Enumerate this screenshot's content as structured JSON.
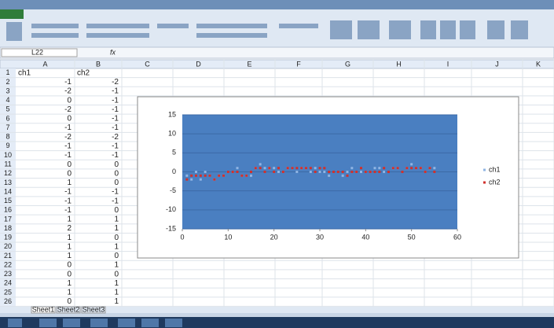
{
  "sheet": {
    "name_box": "L22",
    "formula_label": "fx",
    "columns": [
      "A",
      "B",
      "C",
      "D",
      "E",
      "F",
      "G",
      "H",
      "I",
      "J",
      "K"
    ],
    "rows": [
      1,
      2,
      3,
      4,
      5,
      6,
      7,
      8,
      9,
      10,
      11,
      12,
      13,
      14,
      15,
      16,
      17,
      18,
      19,
      20,
      21,
      22,
      23,
      24,
      25,
      26
    ],
    "cells": [
      [
        "ch1",
        "ch2"
      ],
      [
        -1,
        -2
      ],
      [
        -2,
        -1
      ],
      [
        0,
        -1
      ],
      [
        -2,
        -1
      ],
      [
        0,
        -1
      ],
      [
        -1,
        -1
      ],
      [
        -2,
        -2
      ],
      [
        -1,
        -1
      ],
      [
        -1,
        -1
      ],
      [
        0,
        0
      ],
      [
        0,
        0
      ],
      [
        1,
        0
      ],
      [
        -1,
        -1
      ],
      [
        -1,
        -1
      ],
      [
        -1,
        0
      ],
      [
        1,
        1
      ],
      [
        2,
        1
      ],
      [
        1,
        0
      ],
      [
        1,
        1
      ],
      [
        1,
        0
      ],
      [
        0,
        1
      ],
      [
        0,
        0
      ],
      [
        1,
        1
      ],
      [
        1,
        1
      ],
      [
        0,
        1
      ]
    ],
    "tabs": [
      "Sheet1",
      "Sheet2",
      "Sheet3"
    ]
  },
  "chart_data": {
    "type": "scatter",
    "x": [
      1,
      2,
      3,
      4,
      5,
      6,
      7,
      8,
      9,
      10,
      11,
      12,
      13,
      14,
      15,
      16,
      17,
      18,
      19,
      20,
      21,
      22,
      23,
      24,
      25,
      26,
      27,
      28,
      29,
      30,
      31,
      32,
      33,
      34,
      35,
      36,
      37,
      38,
      39,
      40,
      41,
      42,
      43,
      44,
      45,
      46,
      47,
      48,
      49,
      50,
      51,
      52,
      53,
      54,
      55
    ],
    "series": [
      {
        "name": "ch1",
        "color": "#8fb4e3",
        "values": [
          -1,
          -2,
          0,
          -2,
          0,
          -1,
          -2,
          -1,
          -1,
          0,
          0,
          1,
          -1,
          -1,
          -1,
          1,
          2,
          1,
          1,
          1,
          0,
          0,
          1,
          1,
          0,
          1,
          1,
          0,
          1,
          0,
          0,
          -1,
          0,
          0,
          -1,
          0,
          1,
          0,
          0,
          0,
          0,
          1,
          1,
          0,
          0,
          1,
          1,
          0,
          1,
          2,
          1,
          1,
          0,
          1,
          1
        ]
      },
      {
        "name": "ch2",
        "color": "#d0312d",
        "values": [
          -2,
          -1,
          -1,
          -1,
          -1,
          -1,
          -2,
          -1,
          -1,
          0,
          0,
          0,
          -1,
          -1,
          0,
          1,
          1,
          0,
          1,
          0,
          1,
          0,
          1,
          1,
          1,
          1,
          1,
          1,
          0,
          1,
          1,
          0,
          0,
          0,
          0,
          -1,
          0,
          0,
          1,
          0,
          0,
          0,
          0,
          1,
          0,
          1,
          1,
          0,
          1,
          1,
          1,
          1,
          0,
          1,
          0
        ]
      }
    ],
    "xlim": [
      0,
      60
    ],
    "xticks": [
      0,
      10,
      20,
      30,
      40,
      50,
      60
    ],
    "ylim": [
      -15,
      15
    ],
    "yticks": [
      -15,
      -10,
      -5,
      0,
      5,
      10,
      15
    ],
    "grid": true,
    "legend": "right"
  }
}
